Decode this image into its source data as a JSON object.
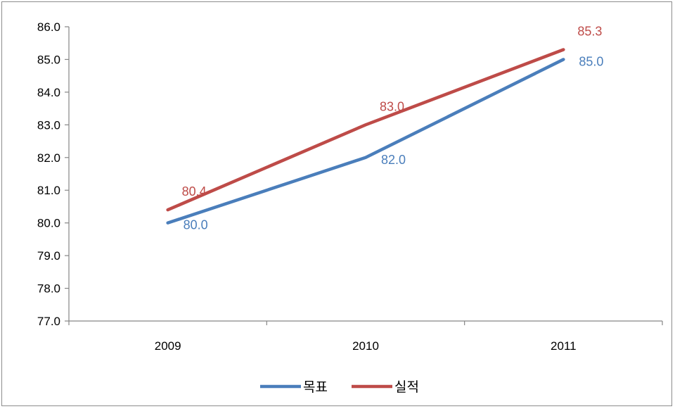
{
  "chart_data": {
    "type": "line",
    "categories": [
      "2009",
      "2010",
      "2011"
    ],
    "y_ticks": [
      "77.0",
      "78.0",
      "79.0",
      "80.0",
      "81.0",
      "82.0",
      "83.0",
      "84.0",
      "85.0",
      "86.0"
    ],
    "ylim": [
      77.0,
      86.0
    ],
    "grid": false,
    "legend": "bottom",
    "series": [
      {
        "name": "목표",
        "color": "#4a7ebb",
        "values": [
          80.0,
          82.0,
          85.0
        ],
        "labels": [
          "80.0",
          "82.0",
          "85.0"
        ]
      },
      {
        "name": "실적",
        "color": "#be4b48",
        "values": [
          80.4,
          83.0,
          85.3
        ],
        "labels": [
          "80.4",
          "83.0",
          "85.3"
        ]
      }
    ]
  }
}
